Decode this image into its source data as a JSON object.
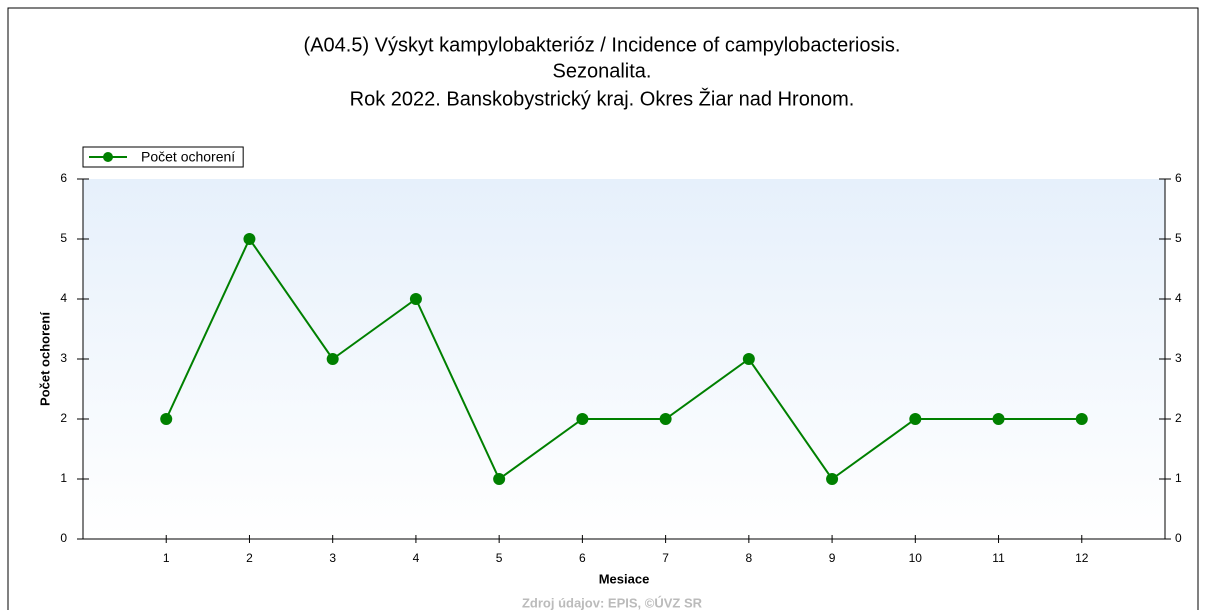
{
  "chart_data": {
    "type": "line",
    "title": [
      "(A04.5) Výskyt kampylobakterióz / Incidence of campylobacteriosis.",
      "Sezonalita.",
      "Rok 2022. Banskobystrický kraj. Okres Žiar nad Hronom."
    ],
    "x": [
      1,
      2,
      3,
      4,
      5,
      6,
      7,
      8,
      9,
      10,
      11,
      12
    ],
    "series": [
      {
        "name": "Počet ochorení",
        "color": "#008000",
        "values": [
          2,
          5,
          3,
          4,
          1,
          2,
          2,
          3,
          1,
          2,
          2,
          2
        ]
      }
    ],
    "xlim": [
      0,
      13
    ],
    "xticks": [
      1,
      2,
      3,
      4,
      5,
      6,
      7,
      8,
      9,
      10,
      11,
      12
    ],
    "ylim": [
      0,
      6
    ],
    "yticks": [
      0,
      1,
      2,
      3,
      4,
      5,
      6
    ],
    "y2lim": [
      0,
      6
    ],
    "y2ticks": [
      0,
      1,
      2,
      3,
      4,
      5,
      6
    ],
    "xlabel": "Mesiace",
    "ylabel": "Počet ochorení",
    "legend": "top-left",
    "source": "Zdroj údajov: EPIS, ©ÚVZ SR"
  }
}
